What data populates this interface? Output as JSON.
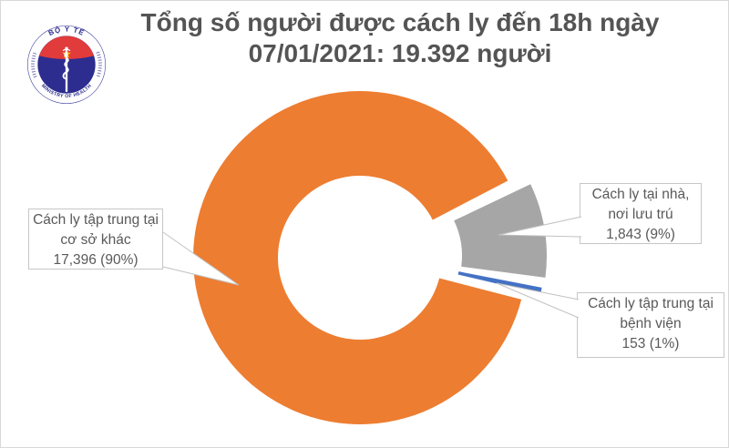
{
  "page": {
    "background": "#ffffff",
    "border_color": "#d8d8d8"
  },
  "logo": {
    "arc_text_top": "BỘ Y TẾ",
    "arc_text_bottom": "MINISTRY OF HEALTH",
    "colors": {
      "navy": "#2d2d8f",
      "red": "#e23b3b",
      "star": "#ffd100",
      "ring_ticks": "#7d7db8"
    }
  },
  "title": {
    "line1": "Tổng số người được cách ly đến 18h ngày",
    "line2": "07/01/2021: 19.392 người",
    "color": "#545454"
  },
  "chart_data": {
    "type": "pie",
    "donut": true,
    "title": "Tổng số người được cách ly đến 18h ngày 07/01/2021: 19.392 người",
    "total": 19392,
    "total_display": "19.392 người",
    "date_display": "07/01/2021",
    "time_display": "18h",
    "legend_position": "callout-labels",
    "slices": [
      {
        "label": "Cách ly tập trung tại cơ sở khác",
        "value": 17396,
        "percent": 90,
        "value_display": "17,396 (90%)",
        "color": "#ED7D31",
        "exploded": false
      },
      {
        "label": "Cách ly tại nhà, nơi lưu trú",
        "value": 1843,
        "percent": 9,
        "value_display": "1,843 (9%)",
        "color": "#A6A6A6",
        "exploded": true
      },
      {
        "label": "Cách ly tập trung tại bệnh viện",
        "value": 153,
        "percent": 1,
        "value_display": "153 (1%)",
        "color": "#4472C4",
        "exploded": true
      }
    ]
  }
}
